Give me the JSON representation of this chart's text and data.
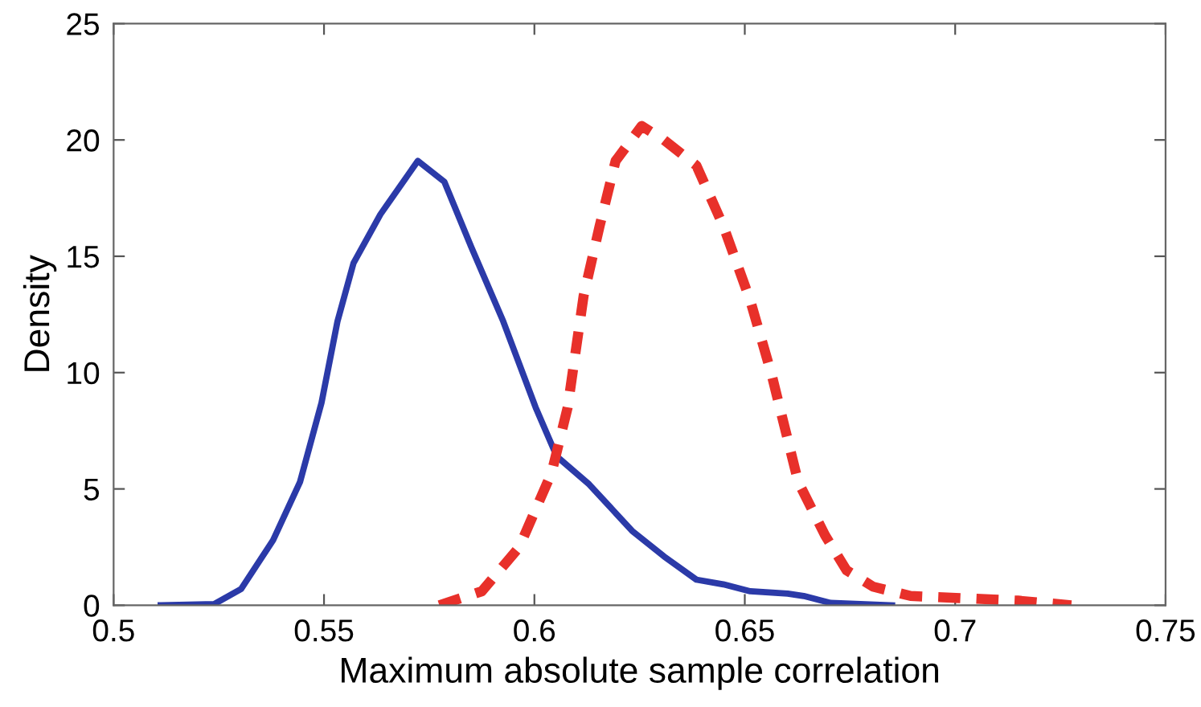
{
  "chart_data": {
    "type": "line",
    "xlabel": "Maximum absolute sample correlation",
    "ylabel": "Density",
    "xlim": [
      0.5,
      0.75
    ],
    "ylim": [
      0,
      25
    ],
    "xticks": [
      0.5,
      0.55,
      0.6,
      0.65,
      0.7,
      0.75
    ],
    "yticks": [
      0,
      5,
      10,
      15,
      20,
      25
    ],
    "grid": false,
    "marker": "none",
    "series": [
      {
        "color": "#2b3aa8",
        "line_style": "solid",
        "x": [
          0.5112,
          0.5239,
          0.5303,
          0.5379,
          0.5443,
          0.5494,
          0.5532,
          0.557,
          0.5634,
          0.5723,
          0.5786,
          0.585,
          0.5926,
          0.6003,
          0.6053,
          0.613,
          0.6232,
          0.6308,
          0.6385,
          0.6449,
          0.6513,
          0.6602,
          0.664,
          0.6704,
          0.685
        ],
        "values": [
          0,
          0.05,
          0.7,
          2.8,
          5.3,
          8.7,
          12.2,
          14.7,
          16.8,
          19.1,
          18.2,
          15.4,
          12.2,
          8.5,
          6.4,
          5.2,
          3.2,
          2.1,
          1.1,
          0.9,
          0.6,
          0.5,
          0.4,
          0.1,
          0
        ]
      },
      {
        "color": "#e8302a",
        "line_style": "dashed",
        "x": [
          0.5774,
          0.5875,
          0.5964,
          0.6041,
          0.6079,
          0.6117,
          0.6155,
          0.6193,
          0.6255,
          0.6308,
          0.6385,
          0.6449,
          0.6513,
          0.6564,
          0.6627,
          0.6691,
          0.6742,
          0.6805,
          0.6894,
          0.7022,
          0.7149,
          0.7276
        ],
        "values": [
          0,
          0.6,
          2.5,
          5.7,
          8.5,
          13.3,
          16.3,
          19.1,
          20.6,
          20.0,
          18.9,
          16.3,
          13.1,
          9.9,
          5.3,
          3.0,
          1.5,
          0.8,
          0.4,
          0.3,
          0.2,
          0
        ]
      }
    ]
  }
}
